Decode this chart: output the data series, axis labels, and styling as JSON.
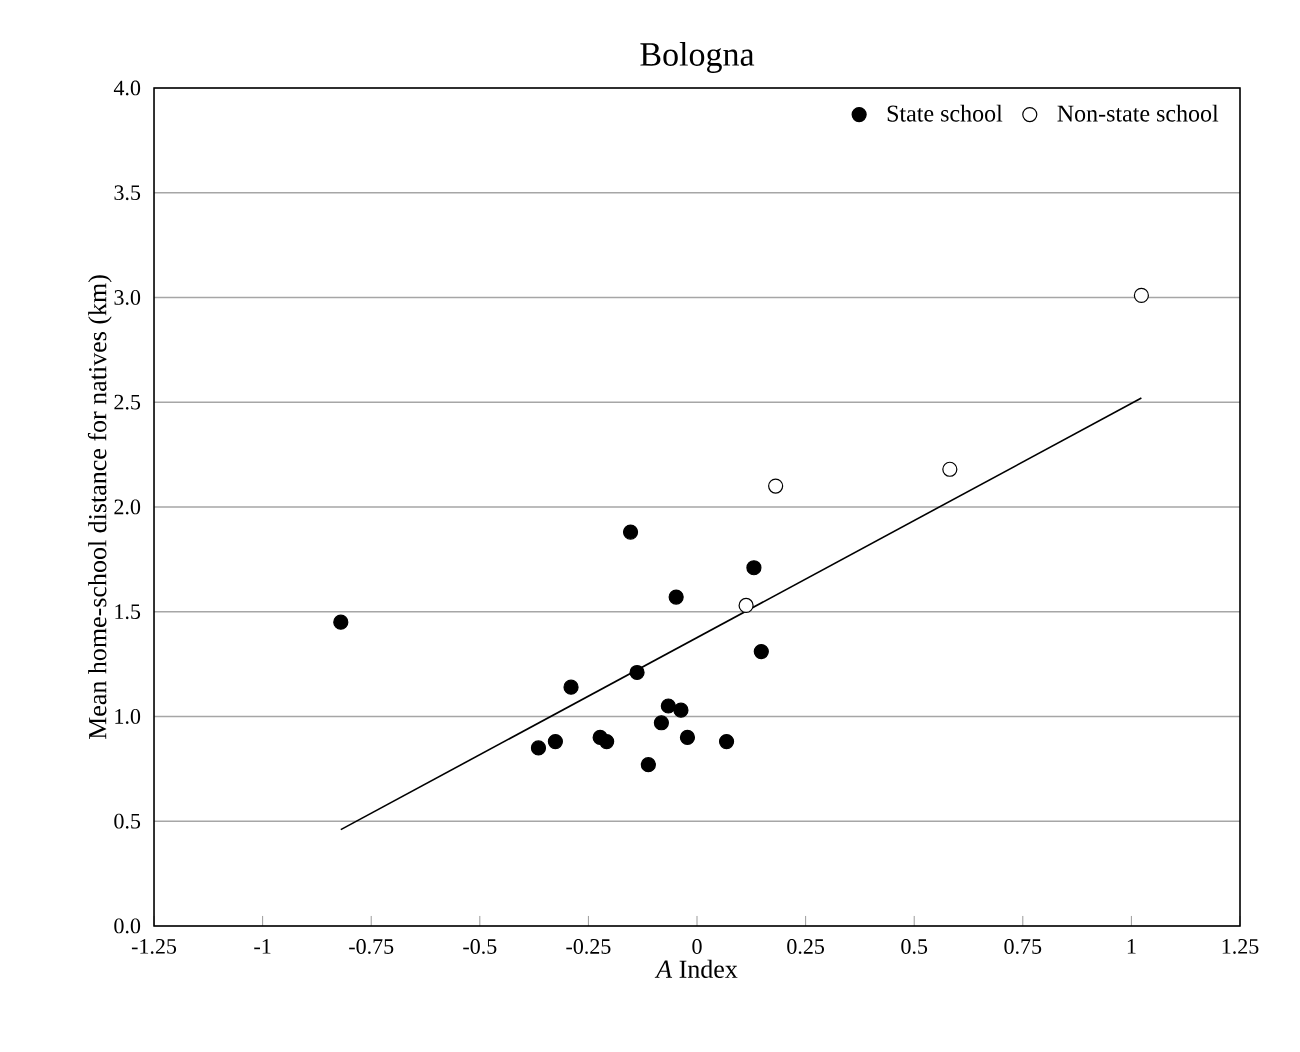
{
  "chart_data": {
    "type": "scatter",
    "title": "Bologna",
    "xlabel": "*A* Index",
    "ylabel": "Mean home-school distance for natives (km)",
    "xlim": [
      -1.25,
      1.25
    ],
    "xticks": [
      -1.25,
      -1,
      -0.75,
      -0.5,
      -0.25,
      0,
      0.25,
      0.5,
      0.75,
      1,
      1.25
    ],
    "ylim": [
      0,
      4
    ],
    "yticks": [
      {
        "value": 0,
        "label": "0.0"
      },
      {
        "value": 0.5,
        "label": "0.5"
      },
      {
        "value": 1,
        "label": "1.0"
      },
      {
        "value": 1.5,
        "label": "1.5"
      },
      {
        "value": 2,
        "label": "2.0"
      },
      {
        "value": 2.5,
        "label": "2.5"
      },
      {
        "value": 3,
        "label": "3.0"
      },
      {
        "value": 3.5,
        "label": "3.5"
      },
      {
        "value": 4,
        "label": "4.0"
      }
    ],
    "grid": "y",
    "legend": "top right",
    "marker": "circle",
    "series": [
      {
        "name": "State school",
        "color": "#000000",
        "x": [
          -0.82,
          -0.365,
          -0.326,
          -0.29,
          -0.223,
          -0.208,
          -0.153,
          -0.138,
          -0.112,
          -0.082,
          -0.066,
          -0.048,
          -0.037,
          -0.022,
          0.068,
          0.131,
          0.148
        ],
        "values": [
          1.45,
          0.85,
          0.88,
          1.14,
          0.9,
          0.88,
          1.88,
          1.21,
          0.77,
          0.97,
          1.05,
          1.57,
          1.03,
          0.9,
          0.88,
          1.71,
          1.31
        ]
      },
      {
        "name": "Non-state school",
        "color": "#ffffff",
        "x": [
          0.113,
          0.181,
          0.582,
          1.023
        ],
        "values": [
          1.53,
          2.1,
          2.18,
          3.01
        ]
      },
      {
        "type": "line",
        "color": "#000000",
        "marker": "none",
        "x": [
          -0.82,
          1.023
        ],
        "values": [
          0.46,
          2.52
        ]
      }
    ]
  }
}
